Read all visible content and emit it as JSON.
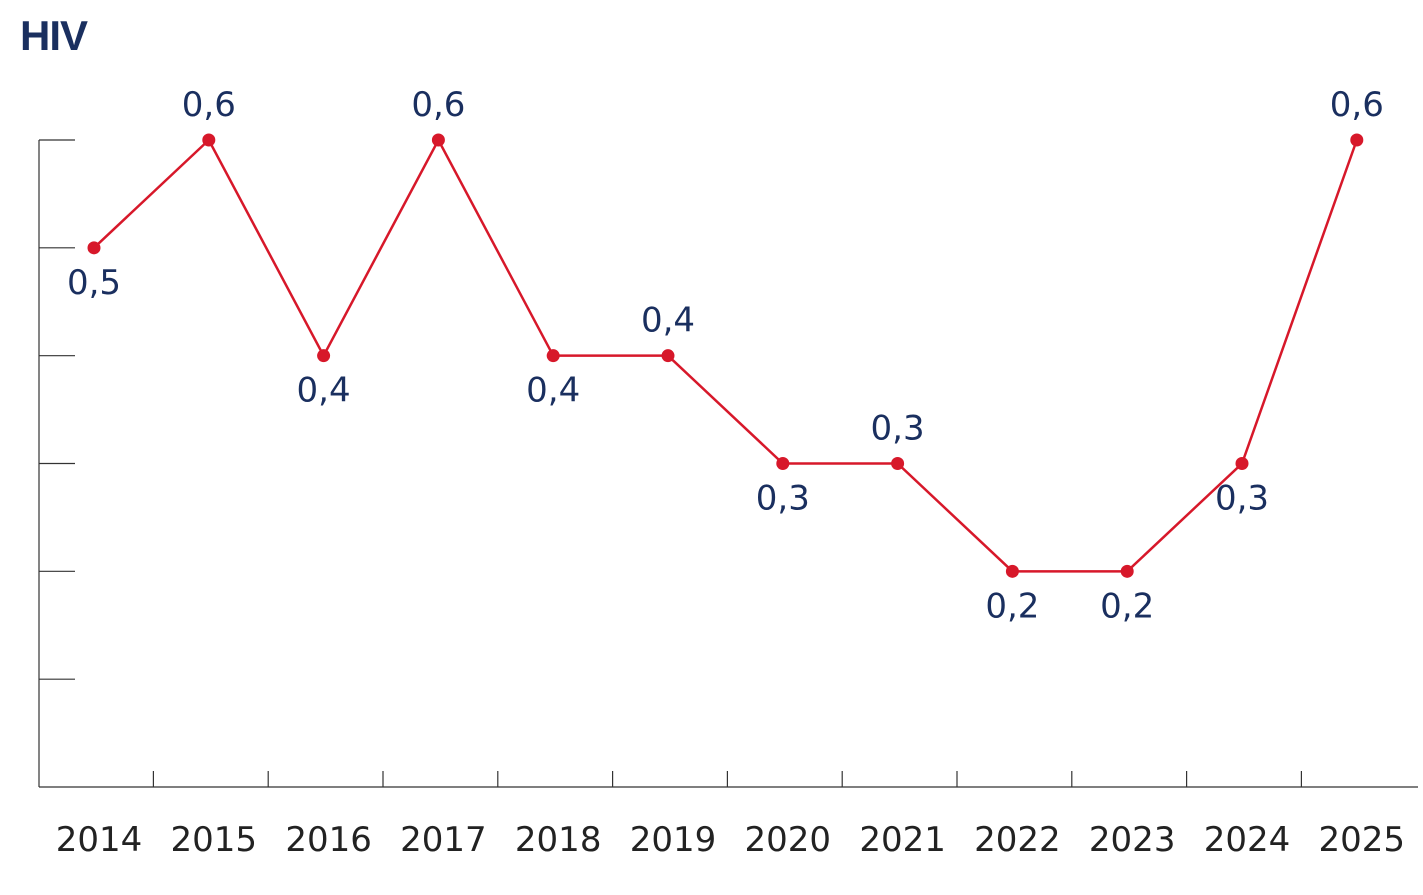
{
  "chart_data": {
    "type": "line",
    "title": "HIV",
    "xlabel": "",
    "ylabel": "",
    "categories": [
      "2014",
      "2015",
      "2016",
      "2017",
      "2018",
      "2019",
      "2020",
      "2021",
      "2022",
      "2023",
      "2024",
      "2025"
    ],
    "series": [
      {
        "values": [
          0.5,
          0.6,
          0.4,
          0.6,
          0.4,
          0.4,
          0.3,
          0.3,
          0.2,
          0.2,
          0.3,
          0.6
        ],
        "labels": [
          "0,5",
          "0,6",
          "0,4",
          "0,6",
          "0,4",
          "0,4",
          "0,3",
          "0,3",
          "0,2",
          "0,2",
          "0,3",
          "0,6"
        ],
        "label_position": [
          "below",
          "above",
          "below",
          "above",
          "below",
          "above",
          "below",
          "above",
          "below",
          "below",
          "below",
          "above"
        ],
        "color": "#d7182a"
      }
    ],
    "ylim": [
      0,
      0.6
    ],
    "y_tick_count": 7,
    "grid": false,
    "legend": "none"
  }
}
